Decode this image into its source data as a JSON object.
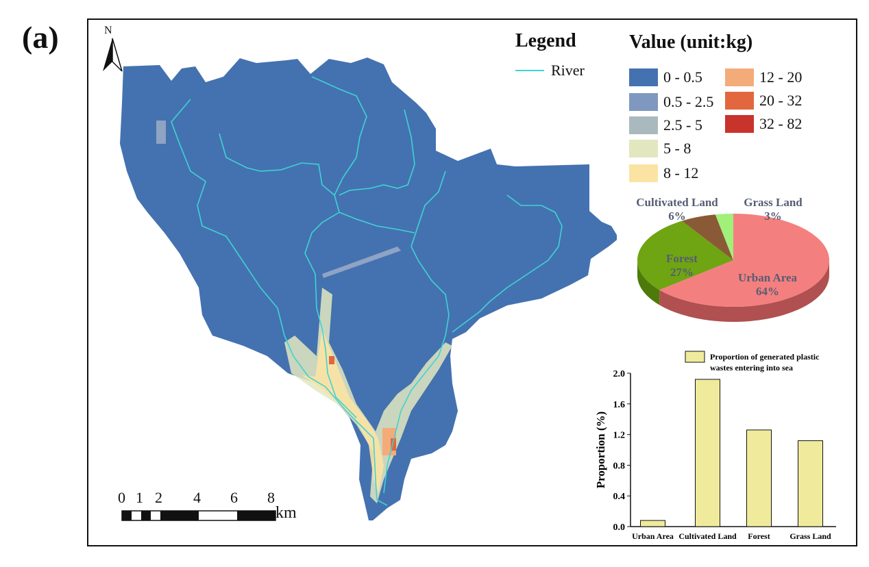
{
  "panel_label": "(a)",
  "north_arrow": {
    "label": "N",
    "icon": "north-arrow-icon"
  },
  "legend": {
    "title": "Legend",
    "river_label": "River",
    "river_color": "#3fd3d3"
  },
  "value_legend": {
    "title": "Value (unit:kg)",
    "classes": [
      {
        "label": "0 - 0.5",
        "color": "#4472b0"
      },
      {
        "label": "0.5 - 2.5",
        "color": "#7f98bf"
      },
      {
        "label": "2.5 - 5",
        "color": "#aab9bd"
      },
      {
        "label": "5 - 8",
        "color": "#e2e7c0"
      },
      {
        "label": "8 - 12",
        "color": "#fbe3a4"
      },
      {
        "label": "12 - 20",
        "color": "#f4ab7a"
      },
      {
        "label": "20 - 32",
        "color": "#e2673f"
      },
      {
        "label": "32 - 82",
        "color": "#c8332b"
      }
    ]
  },
  "scale_bar": {
    "labels": [
      "0",
      "1",
      "2",
      "4",
      "6",
      "8"
    ],
    "unit": "km"
  },
  "pie_chart": {
    "slices": [
      {
        "name": "Urban Area",
        "percent": "64%",
        "value": 64,
        "color": "#f47f7f",
        "side": "#b05050"
      },
      {
        "name": "Forest",
        "percent": "27%",
        "value": 27,
        "color": "#6fa412",
        "side": "#4d7a0a"
      },
      {
        "name": "Cultivated Land",
        "percent": "6%",
        "value": 6,
        "color": "#8a5a36",
        "side": "#5e3c22"
      },
      {
        "name": "Grass Land",
        "percent": "3%",
        "value": 3,
        "color": "#a0f07a",
        "side": "#6ab04e"
      }
    ],
    "label_color": "#555d74"
  },
  "chart_data": {
    "type": "bar",
    "categories": [
      "Urban Area",
      "Cultivated Land",
      "Forest",
      "Grass Land"
    ],
    "values": [
      0.08,
      1.92,
      1.26,
      1.12
    ],
    "series": [
      {
        "name": "Proportion of generated plastic wastes entering into sea",
        "values": [
          0.08,
          1.92,
          1.26,
          1.12
        ]
      }
    ],
    "legend_line1": "Proportion of generated plastic",
    "legend_line2": "wastes entering into sea",
    "ylabel": "Proportion (%)",
    "xlabel": "",
    "ylim": [
      0,
      2.0
    ],
    "yticks": [
      "0.0",
      "0.4",
      "0.8",
      "1.2",
      "1.6",
      "2.0"
    ],
    "bar_color": "#f0eb9c",
    "legend_position": "top"
  }
}
